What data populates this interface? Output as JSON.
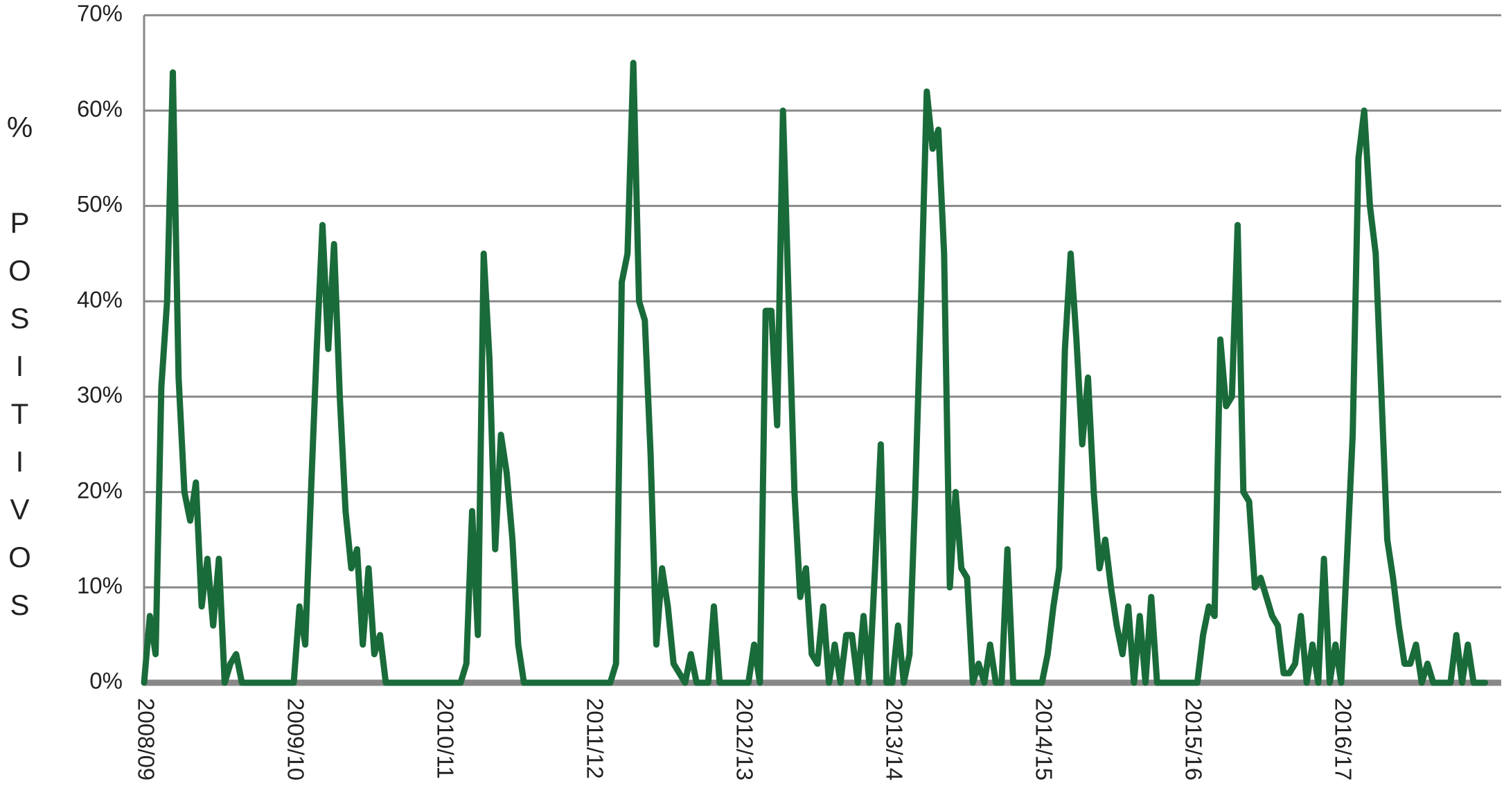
{
  "chart_data": {
    "type": "line",
    "ylabel": "% POSITIVOS",
    "color": "#1a6b3a",
    "grid": true,
    "ylim": [
      0,
      70
    ],
    "yticks": [
      {
        "value": 0,
        "label": "0%"
      },
      {
        "value": 10,
        "label": "10%"
      },
      {
        "value": 20,
        "label": "20%"
      },
      {
        "value": 30,
        "label": "30%"
      },
      {
        "value": 40,
        "label": "40%"
      },
      {
        "value": 50,
        "label": "50%"
      },
      {
        "value": 60,
        "label": "60%"
      },
      {
        "value": 70,
        "label": "70%"
      }
    ],
    "categories": [
      "2008/09",
      null,
      null,
      null,
      null,
      null,
      null,
      null,
      null,
      null,
      null,
      null,
      null,
      null,
      null,
      null,
      null,
      null,
      null,
      null,
      null,
      null,
      null,
      null,
      null,
      null,
      "2009/10",
      null,
      null,
      null,
      null,
      null,
      null,
      null,
      null,
      null,
      null,
      null,
      null,
      null,
      null,
      null,
      null,
      null,
      null,
      null,
      null,
      null,
      null,
      null,
      null,
      null,
      "2010/11",
      null,
      null,
      null,
      null,
      null,
      null,
      null,
      null,
      null,
      null,
      null,
      null,
      null,
      null,
      null,
      null,
      null,
      null,
      null,
      null,
      null,
      null,
      null,
      null,
      null,
      "2011/12",
      null,
      null,
      null,
      null,
      null,
      null,
      null,
      null,
      null,
      null,
      null,
      null,
      null,
      null,
      null,
      null,
      null,
      null,
      null,
      null,
      null,
      null,
      null,
      null,
      null,
      "2012/13",
      null,
      null,
      null,
      null,
      null,
      null,
      null,
      null,
      null,
      null,
      null,
      null,
      null,
      null,
      null,
      null,
      null,
      null,
      null,
      null,
      null,
      null,
      null,
      null,
      null,
      "2013/14",
      null,
      null,
      null,
      null,
      null,
      null,
      null,
      null,
      null,
      null,
      null,
      null,
      null,
      null,
      null,
      null,
      null,
      null,
      null,
      null,
      null,
      null,
      null,
      null,
      null,
      "2014/15",
      null,
      null,
      null,
      null,
      null,
      null,
      null,
      null,
      null,
      null,
      null,
      null,
      null,
      null,
      null,
      null,
      null,
      null,
      null,
      null,
      null,
      null,
      null,
      null,
      null,
      "2015/16",
      null,
      null,
      null,
      null,
      null,
      null,
      null,
      null,
      null,
      null,
      null,
      null,
      null,
      null,
      null,
      null,
      null,
      null,
      null,
      null,
      null,
      null,
      null,
      null,
      null,
      "2016/17",
      null,
      null,
      null,
      null,
      null,
      null,
      null,
      null,
      null,
      null,
      null,
      null,
      null,
      null,
      null,
      null,
      null,
      null,
      null,
      null,
      null,
      null,
      null,
      null,
      null
    ],
    "values": [
      0,
      7,
      3,
      31,
      40,
      64,
      32,
      20,
      17,
      21,
      8,
      13,
      6,
      13,
      0,
      2,
      3,
      0,
      0,
      0,
      0,
      0,
      0,
      0,
      0,
      0,
      0,
      8,
      4,
      20,
      35,
      48,
      35,
      46,
      30,
      18,
      12,
      14,
      4,
      12,
      3,
      5,
      0,
      0,
      0,
      0,
      0,
      0,
      0,
      0,
      0,
      0,
      0,
      0,
      0,
      0,
      2,
      18,
      5,
      45,
      34,
      14,
      26,
      22,
      15,
      4,
      0,
      0,
      0,
      0,
      0,
      0,
      0,
      0,
      0,
      0,
      0,
      0,
      0,
      0,
      0,
      0,
      2,
      42,
      45,
      65,
      40,
      38,
      24,
      4,
      12,
      8,
      2,
      1,
      0,
      3,
      0,
      0,
      0,
      8,
      0,
      0,
      0,
      0,
      0,
      0,
      4,
      0,
      39,
      39,
      27,
      60,
      40,
      20,
      9,
      12,
      3,
      2,
      8,
      0,
      4,
      0,
      5,
      5,
      0,
      7,
      0,
      12,
      25,
      0,
      0,
      6,
      0,
      3,
      20,
      40,
      62,
      56,
      58,
      45,
      10,
      20,
      12,
      11,
      0,
      2,
      0,
      4,
      0,
      0,
      14,
      0,
      0,
      0,
      0,
      0,
      0,
      3,
      8,
      12,
      35,
      45,
      36,
      25,
      32,
      20,
      12,
      15,
      10,
      6,
      3,
      8,
      0,
      7,
      0,
      9,
      0,
      0,
      0,
      0,
      0,
      0,
      0,
      0,
      5,
      8,
      7,
      36,
      29,
      30,
      48,
      20,
      19,
      10,
      11,
      9,
      7,
      6,
      1,
      1,
      2,
      7,
      0,
      4,
      0,
      13,
      0,
      4,
      0,
      13,
      26,
      55,
      60,
      50,
      45,
      30,
      15,
      11,
      6,
      2,
      2,
      4,
      0,
      2,
      0,
      0,
      0,
      0,
      5,
      0,
      4,
      0,
      0,
      0
    ]
  }
}
